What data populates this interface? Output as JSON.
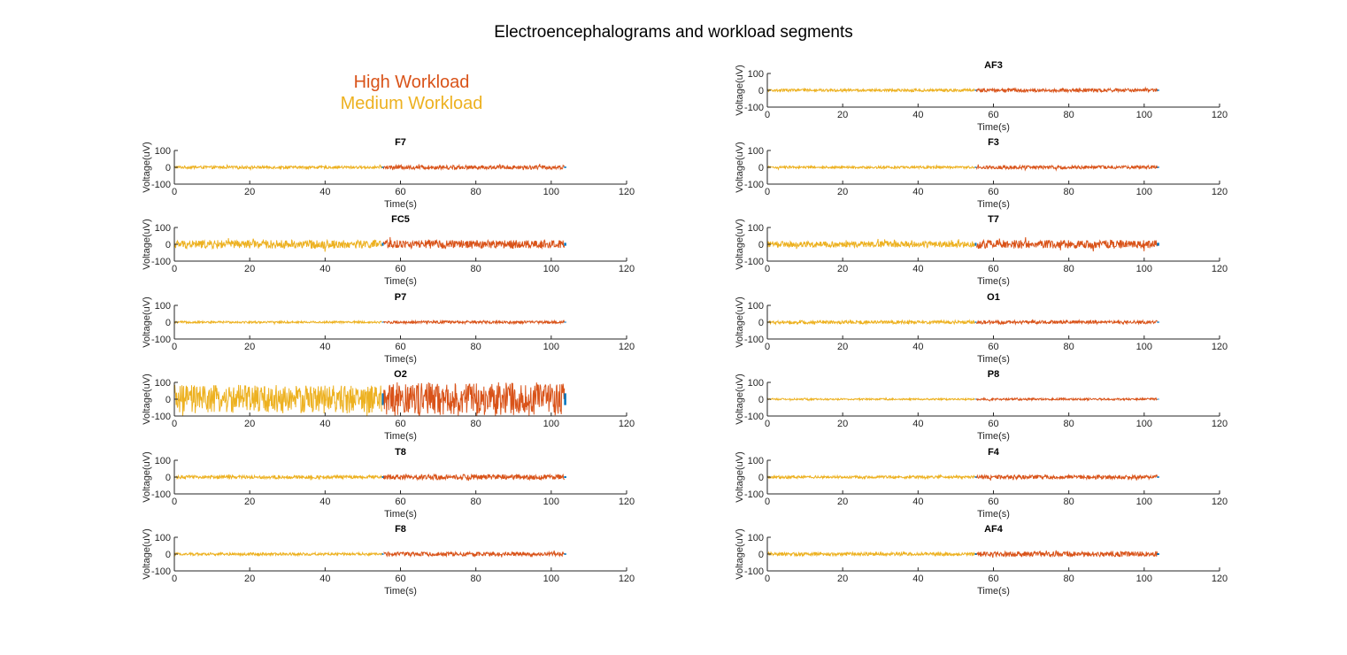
{
  "figure": {
    "title": "Electroencephalograms and workload segments",
    "legend": {
      "high": {
        "label": "High Workload",
        "color": "#D95319"
      },
      "medium": {
        "label": "Medium Workload",
        "color": "#EDB120"
      }
    },
    "colors": {
      "medium": "#EDB120",
      "high": "#D95319",
      "transition": "#0072BD",
      "axis": "#262626"
    }
  },
  "chart_data": [
    {
      "type": "line",
      "title": "F7",
      "xlabel": "Time(s)",
      "ylabel": "Voltage(uV)",
      "xlim": [
        0,
        120
      ],
      "ylim": [
        -100,
        100
      ],
      "xticks": [
        0,
        20,
        40,
        60,
        80,
        100,
        120
      ],
      "yticks": [
        -100,
        0,
        100
      ],
      "series": [
        {
          "name": "Medium Workload",
          "x": [
            0,
            55
          ],
          "amplitude_uv": 8
        },
        {
          "name": "High Workload",
          "x": [
            55.5,
            103.5
          ],
          "amplitude_uv": 12
        }
      ]
    },
    {
      "type": "line",
      "title": "FC5",
      "xlabel": "Time(s)",
      "ylabel": "Voltage(uV)",
      "xlim": [
        0,
        120
      ],
      "ylim": [
        -100,
        100
      ],
      "xticks": [
        0,
        20,
        40,
        60,
        80,
        100,
        120
      ],
      "yticks": [
        -100,
        0,
        100
      ],
      "series": [
        {
          "name": "Medium Workload",
          "x": [
            0,
            55
          ],
          "amplitude_uv": 25
        },
        {
          "name": "High Workload",
          "x": [
            55.5,
            103.5
          ],
          "amplitude_uv": 25
        }
      ]
    },
    {
      "type": "line",
      "title": "P7",
      "xlabel": "Time(s)",
      "ylabel": "Voltage(uV)",
      "xlim": [
        0,
        120
      ],
      "ylim": [
        -100,
        100
      ],
      "xticks": [
        0,
        20,
        40,
        60,
        80,
        100,
        120
      ],
      "yticks": [
        -100,
        0,
        100
      ],
      "series": [
        {
          "name": "Medium Workload",
          "x": [
            0,
            55
          ],
          "amplitude_uv": 6
        },
        {
          "name": "High Workload",
          "x": [
            55.5,
            103.5
          ],
          "amplitude_uv": 8
        }
      ]
    },
    {
      "type": "line",
      "title": "O2",
      "xlabel": "Time(s)",
      "ylabel": "Voltage(uV)",
      "xlim": [
        0,
        120
      ],
      "ylim": [
        -100,
        100
      ],
      "xticks": [
        0,
        20,
        40,
        60,
        80,
        100,
        120
      ],
      "yticks": [
        -100,
        0,
        100
      ],
      "series": [
        {
          "name": "Medium Workload",
          "x": [
            0,
            55
          ],
          "amplitude_uv": 85
        },
        {
          "name": "High Workload",
          "x": [
            55.5,
            103.5
          ],
          "amplitude_uv": 100
        }
      ]
    },
    {
      "type": "line",
      "title": "T8",
      "xlabel": "Time(s)",
      "ylabel": "Voltage(uV)",
      "xlim": [
        0,
        120
      ],
      "ylim": [
        -100,
        100
      ],
      "xticks": [
        0,
        20,
        40,
        60,
        80,
        100,
        120
      ],
      "yticks": [
        -100,
        0,
        100
      ],
      "series": [
        {
          "name": "Medium Workload",
          "x": [
            0,
            55
          ],
          "amplitude_uv": 10
        },
        {
          "name": "High Workload",
          "x": [
            55.5,
            103.5
          ],
          "amplitude_uv": 15
        }
      ]
    },
    {
      "type": "line",
      "title": "F8",
      "xlabel": "Time(s)",
      "ylabel": "Voltage(uV)",
      "xlim": [
        0,
        120
      ],
      "ylim": [
        -100,
        100
      ],
      "xticks": [
        0,
        20,
        40,
        60,
        80,
        100,
        120
      ],
      "yticks": [
        -100,
        0,
        100
      ],
      "series": [
        {
          "name": "Medium Workload",
          "x": [
            0,
            55
          ],
          "amplitude_uv": 8
        },
        {
          "name": "High Workload",
          "x": [
            55.5,
            103.5
          ],
          "amplitude_uv": 12
        }
      ]
    },
    {
      "type": "line",
      "title": "AF3",
      "xlabel": "Time(s)",
      "ylabel": "Voltage(uV)",
      "xlim": [
        0,
        120
      ],
      "ylim": [
        -100,
        100
      ],
      "xticks": [
        0,
        20,
        40,
        60,
        80,
        100,
        120
      ],
      "yticks": [
        -100,
        0,
        100
      ],
      "series": [
        {
          "name": "Medium Workload",
          "x": [
            0,
            55
          ],
          "amplitude_uv": 8
        },
        {
          "name": "High Workload",
          "x": [
            55.5,
            103.5
          ],
          "amplitude_uv": 10
        }
      ]
    },
    {
      "type": "line",
      "title": "F3",
      "xlabel": "Time(s)",
      "ylabel": "Voltage(uV)",
      "xlim": [
        0,
        120
      ],
      "ylim": [
        -100,
        100
      ],
      "xticks": [
        0,
        20,
        40,
        60,
        80,
        100,
        120
      ],
      "yticks": [
        -100,
        0,
        100
      ],
      "series": [
        {
          "name": "Medium Workload",
          "x": [
            0,
            55
          ],
          "amplitude_uv": 7
        },
        {
          "name": "High Workload",
          "x": [
            55.5,
            103.5
          ],
          "amplitude_uv": 10
        }
      ]
    },
    {
      "type": "line",
      "title": "T7",
      "xlabel": "Time(s)",
      "ylabel": "Voltage(uV)",
      "xlim": [
        0,
        120
      ],
      "ylim": [
        -100,
        100
      ],
      "xticks": [
        0,
        20,
        40,
        60,
        80,
        100,
        120
      ],
      "yticks": [
        -100,
        0,
        100
      ],
      "series": [
        {
          "name": "Medium Workload",
          "x": [
            0,
            55
          ],
          "amplitude_uv": 18
        },
        {
          "name": "High Workload",
          "x": [
            55.5,
            103.5
          ],
          "amplitude_uv": 25
        }
      ]
    },
    {
      "type": "line",
      "title": "O1",
      "xlabel": "Time(s)",
      "ylabel": "Voltage(uV)",
      "xlim": [
        0,
        120
      ],
      "ylim": [
        -100,
        100
      ],
      "xticks": [
        0,
        20,
        40,
        60,
        80,
        100,
        120
      ],
      "yticks": [
        -100,
        0,
        100
      ],
      "series": [
        {
          "name": "Medium Workload",
          "x": [
            0,
            55
          ],
          "amplitude_uv": 10
        },
        {
          "name": "High Workload",
          "x": [
            55.5,
            103.5
          ],
          "amplitude_uv": 10
        }
      ]
    },
    {
      "type": "line",
      "title": "P8",
      "xlabel": "Time(s)",
      "ylabel": "Voltage(uV)",
      "xlim": [
        0,
        120
      ],
      "ylim": [
        -100,
        100
      ],
      "xticks": [
        0,
        20,
        40,
        60,
        80,
        100,
        120
      ],
      "yticks": [
        -100,
        0,
        100
      ],
      "series": [
        {
          "name": "Medium Workload",
          "x": [
            0,
            55
          ],
          "amplitude_uv": 5
        },
        {
          "name": "High Workload",
          "x": [
            55.5,
            103.5
          ],
          "amplitude_uv": 6
        }
      ]
    },
    {
      "type": "line",
      "title": "F4",
      "xlabel": "Time(s)",
      "ylabel": "Voltage(uV)",
      "xlim": [
        0,
        120
      ],
      "ylim": [
        -100,
        100
      ],
      "xticks": [
        0,
        20,
        40,
        60,
        80,
        100,
        120
      ],
      "yticks": [
        -100,
        0,
        100
      ],
      "series": [
        {
          "name": "Medium Workload",
          "x": [
            0,
            55
          ],
          "amplitude_uv": 8
        },
        {
          "name": "High Workload",
          "x": [
            55.5,
            103.5
          ],
          "amplitude_uv": 12
        }
      ]
    },
    {
      "type": "line",
      "title": "AF4",
      "xlabel": "Time(s)",
      "ylabel": "Voltage(uV)",
      "xlim": [
        0,
        120
      ],
      "ylim": [
        -100,
        100
      ],
      "xticks": [
        0,
        20,
        40,
        60,
        80,
        100,
        120
      ],
      "yticks": [
        -100,
        0,
        100
      ],
      "series": [
        {
          "name": "Medium Workload",
          "x": [
            0,
            55
          ],
          "amplitude_uv": 10
        },
        {
          "name": "High Workload",
          "x": [
            55.5,
            103.5
          ],
          "amplitude_uv": 15
        }
      ]
    }
  ]
}
